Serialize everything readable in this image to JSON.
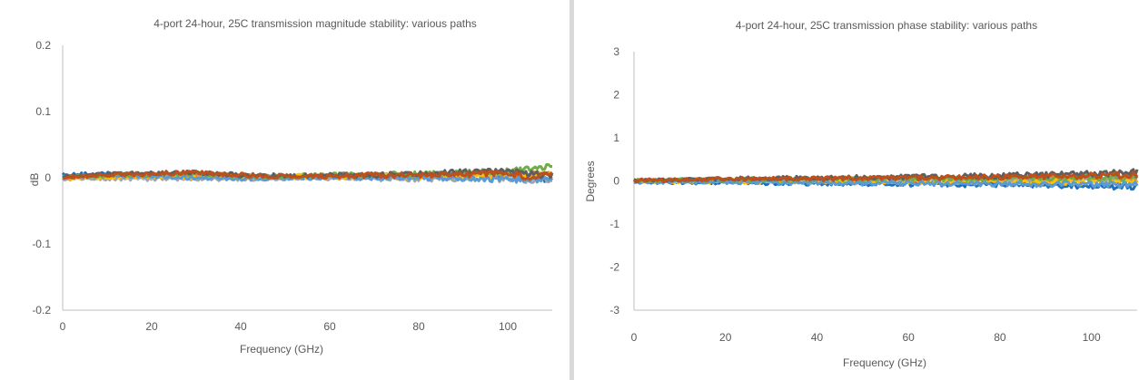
{
  "colors": {
    "axis": "#bfbfbf",
    "text": "#595959",
    "series": [
      "#1f6fbf",
      "#ed7d31",
      "#a5a5a5",
      "#ffc000",
      "#5b9bd5",
      "#70ad47",
      "#5f5f5f",
      "#c0501b"
    ]
  },
  "chart_data": [
    {
      "type": "line",
      "title": "4-port 24-hour, 25C transmission magnitude stability: various paths",
      "xlabel": "Frequency (GHz)",
      "ylabel": "dB",
      "xlim": [
        0,
        110
      ],
      "ylim": [
        -0.2,
        0.2
      ],
      "xticks": [
        "0",
        "20",
        "40",
        "60",
        "80",
        "100"
      ],
      "yticks": [
        "-0.2",
        "-0.1",
        "0",
        "0.1",
        "0.2"
      ],
      "grid": false,
      "series": [
        {
          "x": [
            0,
            10,
            20,
            30,
            40,
            50,
            60,
            70,
            80,
            90,
            100,
            105,
            110
          ],
          "values": [
            0.005,
            0.006,
            0.004,
            0.003,
            0.002,
            0.001,
            0.002,
            0.003,
            0.002,
            0.004,
            0.003,
            0.002,
            -0.004
          ]
        },
        {
          "x": [
            0,
            10,
            20,
            30,
            40,
            50,
            60,
            70,
            80,
            90,
            100,
            105,
            110
          ],
          "values": [
            0,
            0.002,
            0.004,
            0.003,
            0.001,
            0,
            0.001,
            0.002,
            0.001,
            0.002,
            0.004,
            0.004,
            0.006
          ]
        },
        {
          "x": [
            0,
            10,
            20,
            30,
            40,
            50,
            60,
            70,
            80,
            90,
            100,
            105,
            110
          ],
          "values": [
            -0.002,
            -0.001,
            -0.002,
            -0.001,
            -0.002,
            -0.001,
            0,
            -0.001,
            -0.002,
            -0.001,
            -0.002,
            -0.003,
            -0.002
          ]
        },
        {
          "x": [
            0,
            10,
            20,
            30,
            40,
            50,
            60,
            70,
            80,
            90,
            100,
            105,
            110
          ],
          "values": [
            0,
            0.001,
            0.002,
            0.001,
            0.001,
            0.002,
            0.002,
            0.003,
            0.002,
            0.002,
            0.003,
            0.004,
            0.005
          ]
        },
        {
          "x": [
            0,
            10,
            20,
            30,
            40,
            50,
            60,
            70,
            80,
            90,
            100,
            105,
            110
          ],
          "values": [
            0.002,
            0.004,
            0.002,
            0,
            -0.001,
            0,
            0.001,
            0,
            0,
            -0.001,
            -0.002,
            -0.003,
            -0.004
          ]
        },
        {
          "x": [
            0,
            10,
            20,
            30,
            40,
            50,
            60,
            70,
            80,
            90,
            100,
            105,
            110
          ],
          "values": [
            0.001,
            0.003,
            0.005,
            0.006,
            0.003,
            0.002,
            0.004,
            0.005,
            0.005,
            0.007,
            0.01,
            0.015,
            0.018
          ]
        },
        {
          "x": [
            0,
            10,
            20,
            30,
            40,
            50,
            60,
            70,
            80,
            90,
            100,
            105,
            110
          ],
          "values": [
            0.002,
            0.005,
            0.007,
            0.008,
            0.004,
            0.003,
            0.004,
            0.004,
            0.006,
            0.008,
            0.01,
            0.006,
            0.003
          ]
        },
        {
          "x": [
            0,
            10,
            20,
            30,
            40,
            50,
            60,
            70,
            80,
            90,
            100,
            105,
            110
          ],
          "values": [
            0.001,
            0.004,
            0.006,
            0.008,
            0.004,
            0.002,
            0.003,
            0.004,
            0.003,
            0.005,
            0.008,
            0.0,
            0.006
          ]
        }
      ]
    },
    {
      "type": "line",
      "title": "4-port 24-hour, 25C transmission phase stability: various paths",
      "xlabel": "Frequency (GHz)",
      "ylabel": "Degrees",
      "xlim": [
        0,
        110
      ],
      "ylim": [
        -3,
        3
      ],
      "xticks": [
        "0",
        "20",
        "40",
        "60",
        "80",
        "100"
      ],
      "yticks": [
        "-3",
        "-2",
        "-1",
        "0",
        "1",
        "2",
        "3"
      ],
      "grid": false,
      "series": [
        {
          "x": [
            0,
            10,
            20,
            30,
            40,
            50,
            60,
            70,
            80,
            90,
            100,
            110
          ],
          "values": [
            -0.02,
            -0.03,
            -0.04,
            -0.05,
            -0.05,
            -0.06,
            -0.07,
            -0.08,
            -0.08,
            -0.09,
            -0.11,
            -0.14
          ]
        },
        {
          "x": [
            0,
            10,
            20,
            30,
            40,
            50,
            60,
            70,
            80,
            90,
            100,
            110
          ],
          "values": [
            0,
            0.02,
            0.02,
            0.03,
            0.03,
            0.03,
            0.04,
            0.04,
            0.05,
            0.05,
            0.05,
            0.05
          ]
        },
        {
          "x": [
            0,
            10,
            20,
            30,
            40,
            50,
            60,
            70,
            80,
            90,
            100,
            110
          ],
          "values": [
            0,
            0.01,
            0.02,
            0.02,
            0.02,
            0.03,
            0.03,
            0.03,
            0.03,
            0.04,
            0.04,
            0.04
          ]
        },
        {
          "x": [
            0,
            10,
            20,
            30,
            40,
            50,
            60,
            70,
            80,
            90,
            100,
            110
          ],
          "values": [
            0,
            -0.01,
            -0.01,
            -0.02,
            -0.01,
            -0.02,
            -0.02,
            -0.01,
            -0.02,
            -0.02,
            -0.03,
            -0.03
          ]
        },
        {
          "x": [
            0,
            10,
            20,
            30,
            40,
            50,
            60,
            70,
            80,
            90,
            100,
            110
          ],
          "values": [
            -0.01,
            -0.02,
            -0.03,
            -0.04,
            -0.04,
            -0.05,
            -0.05,
            -0.06,
            -0.06,
            -0.07,
            -0.08,
            -0.09
          ]
        },
        {
          "x": [
            0,
            10,
            20,
            30,
            40,
            50,
            60,
            70,
            80,
            90,
            100,
            110
          ],
          "values": [
            0.01,
            0.02,
            0.03,
            0.04,
            0.04,
            0.05,
            0.05,
            0.06,
            0.06,
            0.07,
            0.08,
            0.08
          ]
        },
        {
          "x": [
            0,
            10,
            20,
            30,
            40,
            50,
            60,
            70,
            80,
            90,
            100,
            110
          ],
          "values": [
            0.01,
            0.03,
            0.05,
            0.06,
            0.07,
            0.08,
            0.09,
            0.1,
            0.12,
            0.14,
            0.17,
            0.2
          ]
        },
        {
          "x": [
            0,
            10,
            20,
            30,
            40,
            50,
            60,
            70,
            80,
            90,
            100,
            110
          ],
          "values": [
            0.01,
            0.02,
            0.04,
            0.05,
            0.05,
            0.06,
            0.07,
            0.08,
            0.09,
            0.1,
            0.12,
            0.14
          ]
        }
      ]
    }
  ]
}
